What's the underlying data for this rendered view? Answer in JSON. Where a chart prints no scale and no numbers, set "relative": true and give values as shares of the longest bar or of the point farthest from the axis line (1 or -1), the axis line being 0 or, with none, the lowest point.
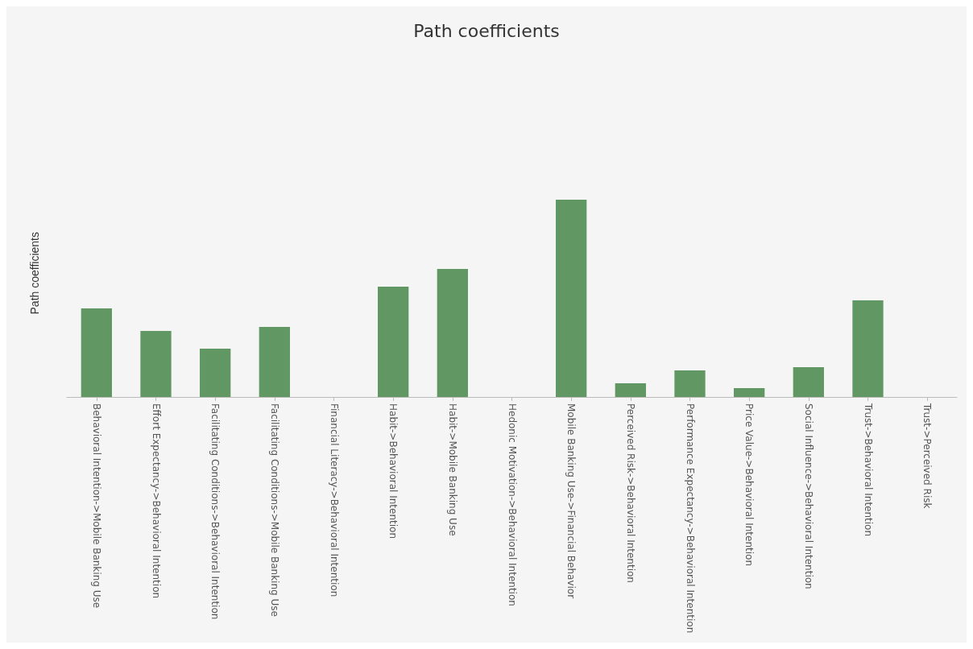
{
  "chart_data": {
    "type": "bar",
    "title": "Path coefficients",
    "ylabel": "Path coefficients",
    "relative": true,
    "color": "#619762",
    "grid": false,
    "categories": [
      "Behavioral Intention->Mobile Banking Use",
      "Effort Expectancy->Behavioral Intention",
      "Facilitating Conditions->Behavioral Intention",
      "Facilitating Conditions->Mobile Banking Use",
      "Financial Literacy->Behavioral Intention",
      "Habit->Behavioral Intention",
      "Habit->Mobile Banking Use",
      "Hedonic Motivation->Behavioral Intention",
      "Mobile Banking Use->Financial Behavior",
      "Perceived Risk->Behavioral Intention",
      "Performance Expectancy->Behavioral Intention",
      "Price Value->Behavioral Intention",
      "Social Influence->Behavioral Intention",
      "Trust->Behavioral Intention",
      "Trust->Perceived Risk"
    ],
    "values": [
      0.449,
      0.335,
      0.245,
      0.355,
      0,
      0.559,
      0.649,
      0,
      1,
      0.069,
      0.135,
      0.045,
      0.151,
      0.49,
      0
    ]
  }
}
